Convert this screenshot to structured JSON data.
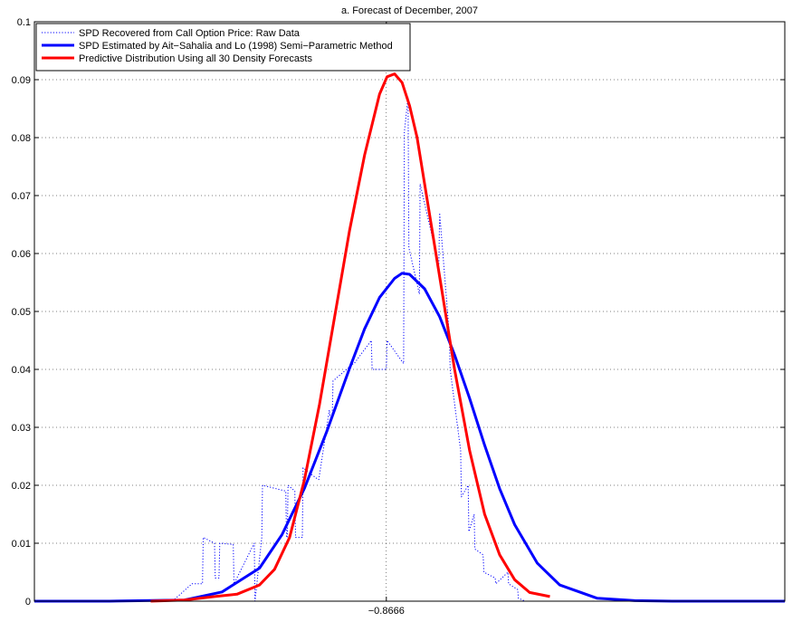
{
  "chart_data": {
    "type": "line",
    "title": "a. Forecast of December, 2007",
    "xlabel": "",
    "ylabel": "",
    "xlim": [
      0,
      100
    ],
    "ylim": [
      0,
      0.1
    ],
    "y_ticks": [
      "0",
      "0.01",
      "0.02",
      "0.03",
      "0.04",
      "0.05",
      "0.06",
      "0.07",
      "0.08",
      "0.09",
      "0.1"
    ],
    "x_tick_label": "−0.8666",
    "x_tick_value": 46.9,
    "grid": true,
    "legend_position": "top-left",
    "series": [
      {
        "name": "SPD Recovered from Call Option Price: Raw Data",
        "style": "dotted",
        "color": "#0000ff",
        "x": [
          18.4,
          21.0,
          22.4,
          22.5,
          24.0,
          24.1,
          24.6,
          24.7,
          26.5,
          26.6,
          29.3,
          29.4,
          30.3,
          30.4,
          33.5,
          33.6,
          33.7,
          33.8,
          34.7,
          34.8,
          35.7,
          35.8,
          37.8,
          37.9,
          39.3,
          39.4,
          39.7,
          39.8,
          42.5,
          42.6,
          44.9,
          45.0,
          46.9,
          47.0,
          49.2,
          49.3,
          49.8,
          49.9,
          51.3,
          51.4,
          53.9,
          54.0,
          55.3,
          55.4,
          56.8,
          56.9,
          57.8,
          57.9,
          58.6,
          58.7,
          59.8,
          59.9,
          61.4,
          61.5,
          63.1,
          63.2,
          64.4,
          64.5,
          65.4
        ],
        "y": [
          0.0,
          0.003,
          0.003,
          0.011,
          0.01,
          0.004,
          0.004,
          0.01,
          0.0098,
          0.003,
          0.01,
          0.0,
          0.011,
          0.02,
          0.019,
          0.011,
          0.011,
          0.02,
          0.019,
          0.011,
          0.011,
          0.023,
          0.021,
          0.021,
          0.033,
          0.032,
          0.032,
          0.038,
          0.041,
          0.041,
          0.045,
          0.04,
          0.04,
          0.045,
          0.041,
          0.081,
          0.087,
          0.061,
          0.053,
          0.072,
          0.058,
          0.067,
          0.046,
          0.04,
          0.026,
          0.018,
          0.02,
          0.012,
          0.015,
          0.009,
          0.008,
          0.005,
          0.004,
          0.003,
          0.005,
          0.003,
          0.002,
          0.0005,
          0.0
        ]
      },
      {
        "name": "SPD Estimated by Ait−Sahalia and Lo (1998) Semi−Parametric Method",
        "style": "solid",
        "color": "#0000ff",
        "x": [
          0,
          10,
          20,
          25,
          30,
          33,
          36,
          39,
          42,
          44,
          46,
          48,
          49,
          50,
          52,
          54,
          56,
          58,
          60,
          62,
          64,
          67,
          70,
          75,
          80,
          85,
          90,
          100
        ],
        "y": [
          0.0,
          0.0,
          0.0002,
          0.0016,
          0.0057,
          0.0115,
          0.0195,
          0.0294,
          0.0402,
          0.047,
          0.0524,
          0.0557,
          0.0566,
          0.0564,
          0.0539,
          0.0491,
          0.0425,
          0.035,
          0.0269,
          0.0194,
          0.0132,
          0.0066,
          0.0028,
          0.0005,
          0.0001,
          0.0,
          0.0,
          0.0
        ]
      },
      {
        "name": "Predictive Distribution Using all 30 Density Forecasts",
        "style": "solid",
        "color": "#ff0000",
        "x": [
          15.5,
          20,
          24,
          27,
          30,
          32,
          34,
          36,
          38,
          40,
          42,
          44,
          46,
          47,
          48,
          49,
          50,
          51,
          52,
          54,
          56,
          58,
          60,
          62,
          64,
          66,
          68.7
        ],
        "y": [
          0.0,
          0.0002,
          0.0008,
          0.0012,
          0.0028,
          0.0055,
          0.011,
          0.021,
          0.034,
          0.049,
          0.064,
          0.077,
          0.0875,
          0.0905,
          0.091,
          0.0895,
          0.0855,
          0.08,
          0.072,
          0.056,
          0.04,
          0.026,
          0.015,
          0.008,
          0.0037,
          0.0015,
          0.0008
        ]
      }
    ]
  }
}
